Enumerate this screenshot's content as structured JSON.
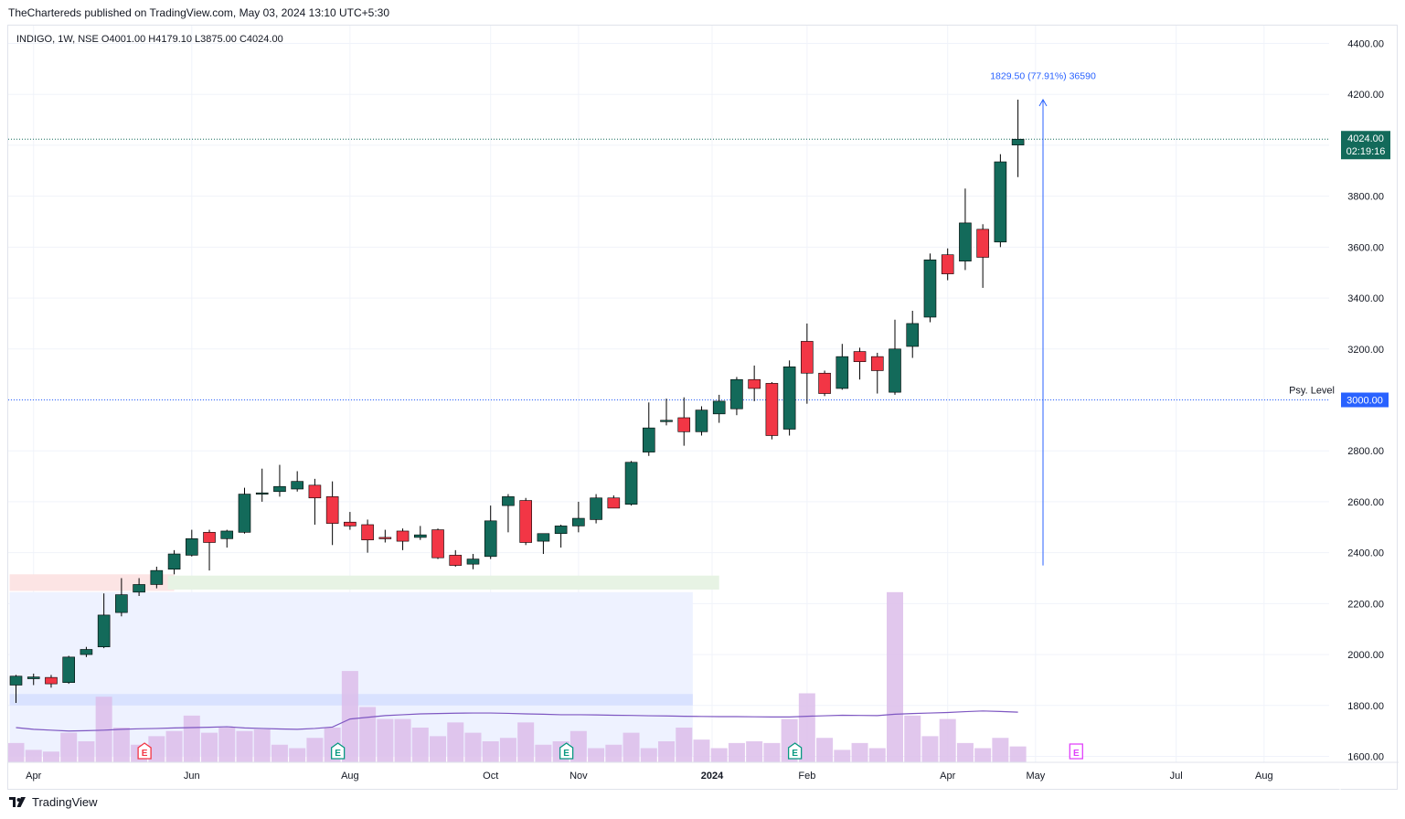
{
  "header": {
    "published_by": "TheChartereds published on TradingView.com, May 03, 2024 13:10 UTC+5:30"
  },
  "legend": {
    "symbol": "INDIGO, 1W, NSE",
    "open": "O4001.00",
    "high": "H4179.10",
    "low": "L3875.00",
    "close": "C4024.00"
  },
  "price_label": {
    "price": "4024.00",
    "countdown": "02:19:16",
    "color": "#136a5a"
  },
  "psy_level": {
    "label": "Psy. Level",
    "value_text": "3000.00",
    "value": 3000,
    "color": "#2962ff"
  },
  "measure": {
    "text": "1829.50 (77.91%) 36590",
    "from_price": 2350,
    "to_price": 4179.1,
    "color": "#2962ff"
  },
  "footer": {
    "brand": "TradingView"
  },
  "earnings_markers": [
    {
      "label": "E",
      "after_bar": 7,
      "style": "red"
    },
    {
      "label": "E",
      "after_bar": 18,
      "style": "green"
    },
    {
      "label": "E",
      "after_bar": 31,
      "style": "green"
    },
    {
      "label": "E",
      "after_bar": 44,
      "style": "green"
    },
    {
      "label": "E",
      "after_bar": 60,
      "style": "magenta"
    }
  ],
  "chart_data": {
    "type": "candlestick",
    "symbol": "INDIGO",
    "timeframe": "1W",
    "exchange": "NSE",
    "y_axis": {
      "ticks": [
        "4400.00",
        "4200.00",
        "4000.00",
        "3800.00",
        "3600.00",
        "3400.00",
        "3200.00",
        "3000.00",
        "2800.00",
        "2600.00",
        "2400.00",
        "2200.00",
        "2000.00",
        "1800.00",
        "1600.00"
      ],
      "range": [
        1600,
        4400
      ]
    },
    "x_axis": {
      "labels": [
        {
          "text": "Apr",
          "bar": 1
        },
        {
          "text": "Jun",
          "bar": 10
        },
        {
          "text": "Aug",
          "bar": 19
        },
        {
          "text": "Oct",
          "bar": 27
        },
        {
          "text": "Nov",
          "bar": 32
        },
        {
          "text": "2024",
          "bar": 39.6
        },
        {
          "text": "Feb",
          "bar": 45
        },
        {
          "text": "Apr",
          "bar": 53
        },
        {
          "text": "May",
          "bar": 58
        },
        {
          "text": "Jul",
          "bar": 66
        },
        {
          "text": "Aug",
          "bar": 71
        }
      ]
    },
    "up_color": "#136a5a",
    "down_color": "#f23645",
    "candles": [
      {
        "o": 1880,
        "h": 1920,
        "l": 1810,
        "c": 1915
      },
      {
        "o": 1905,
        "h": 1925,
        "l": 1880,
        "c": 1912
      },
      {
        "o": 1910,
        "h": 1920,
        "l": 1870,
        "c": 1885
      },
      {
        "o": 1890,
        "h": 1995,
        "l": 1885,
        "c": 1990
      },
      {
        "o": 2000,
        "h": 2030,
        "l": 1990,
        "c": 2020
      },
      {
        "o": 2030,
        "h": 2240,
        "l": 2025,
        "c": 2155
      },
      {
        "o": 2165,
        "h": 2300,
        "l": 2150,
        "c": 2235
      },
      {
        "o": 2245,
        "h": 2300,
        "l": 2230,
        "c": 2275
      },
      {
        "o": 2275,
        "h": 2345,
        "l": 2260,
        "c": 2330
      },
      {
        "o": 2335,
        "h": 2410,
        "l": 2315,
        "c": 2395
      },
      {
        "o": 2390,
        "h": 2490,
        "l": 2385,
        "c": 2455
      },
      {
        "o": 2480,
        "h": 2490,
        "l": 2330,
        "c": 2440
      },
      {
        "o": 2455,
        "h": 2490,
        "l": 2420,
        "c": 2485
      },
      {
        "o": 2480,
        "h": 2655,
        "l": 2475,
        "c": 2630
      },
      {
        "o": 2630,
        "h": 2730,
        "l": 2600,
        "c": 2635
      },
      {
        "o": 2640,
        "h": 2745,
        "l": 2620,
        "c": 2660
      },
      {
        "o": 2650,
        "h": 2720,
        "l": 2640,
        "c": 2680
      },
      {
        "o": 2665,
        "h": 2690,
        "l": 2510,
        "c": 2615
      },
      {
        "o": 2620,
        "h": 2680,
        "l": 2430,
        "c": 2515
      },
      {
        "o": 2520,
        "h": 2560,
        "l": 2490,
        "c": 2505
      },
      {
        "o": 2510,
        "h": 2530,
        "l": 2400,
        "c": 2450
      },
      {
        "o": 2460,
        "h": 2490,
        "l": 2440,
        "c": 2455
      },
      {
        "o": 2485,
        "h": 2495,
        "l": 2410,
        "c": 2445
      },
      {
        "o": 2460,
        "h": 2505,
        "l": 2450,
        "c": 2470
      },
      {
        "o": 2490,
        "h": 2495,
        "l": 2375,
        "c": 2380
      },
      {
        "o": 2390,
        "h": 2410,
        "l": 2345,
        "c": 2350
      },
      {
        "o": 2355,
        "h": 2395,
        "l": 2335,
        "c": 2375
      },
      {
        "o": 2385,
        "h": 2585,
        "l": 2375,
        "c": 2525
      },
      {
        "o": 2585,
        "h": 2630,
        "l": 2480,
        "c": 2620
      },
      {
        "o": 2605,
        "h": 2615,
        "l": 2430,
        "c": 2440
      },
      {
        "o": 2445,
        "h": 2470,
        "l": 2395,
        "c": 2475
      },
      {
        "o": 2475,
        "h": 2510,
        "l": 2420,
        "c": 2505
      },
      {
        "o": 2505,
        "h": 2600,
        "l": 2480,
        "c": 2535
      },
      {
        "o": 2530,
        "h": 2630,
        "l": 2515,
        "c": 2615
      },
      {
        "o": 2615,
        "h": 2625,
        "l": 2575,
        "c": 2575
      },
      {
        "o": 2590,
        "h": 2760,
        "l": 2585,
        "c": 2755
      },
      {
        "o": 2795,
        "h": 2990,
        "l": 2780,
        "c": 2890
      },
      {
        "o": 2920,
        "h": 3005,
        "l": 2900,
        "c": 2920
      },
      {
        "o": 2930,
        "h": 3010,
        "l": 2820,
        "c": 2875
      },
      {
        "o": 2875,
        "h": 2975,
        "l": 2860,
        "c": 2960
      },
      {
        "o": 2945,
        "h": 3020,
        "l": 2910,
        "c": 2995
      },
      {
        "o": 2965,
        "h": 3090,
        "l": 2940,
        "c": 3080
      },
      {
        "o": 3080,
        "h": 3135,
        "l": 2995,
        "c": 3045
      },
      {
        "o": 3065,
        "h": 3070,
        "l": 2845,
        "c": 2860
      },
      {
        "o": 2885,
        "h": 3155,
        "l": 2860,
        "c": 3130
      },
      {
        "o": 3230,
        "h": 3300,
        "l": 2985,
        "c": 3105
      },
      {
        "o": 3105,
        "h": 3115,
        "l": 3015,
        "c": 3025
      },
      {
        "o": 3045,
        "h": 3220,
        "l": 3040,
        "c": 3170
      },
      {
        "o": 3190,
        "h": 3205,
        "l": 3080,
        "c": 3150
      },
      {
        "o": 3170,
        "h": 3185,
        "l": 3025,
        "c": 3115
      },
      {
        "o": 3030,
        "h": 3315,
        "l": 3020,
        "c": 3200
      },
      {
        "o": 3210,
        "h": 3350,
        "l": 3165,
        "c": 3300
      },
      {
        "o": 3325,
        "h": 3575,
        "l": 3305,
        "c": 3550
      },
      {
        "o": 3570,
        "h": 3595,
        "l": 3470,
        "c": 3495
      },
      {
        "o": 3545,
        "h": 3830,
        "l": 3510,
        "c": 3695
      },
      {
        "o": 3670,
        "h": 3690,
        "l": 3440,
        "c": 3560
      },
      {
        "o": 3620,
        "h": 3965,
        "l": 3600,
        "c": 3935
      },
      {
        "o": 4001,
        "h": 4179.1,
        "l": 3875,
        "c": 4024
      }
    ],
    "volume": {
      "colors": {
        "bar": "#dcbdea",
        "ma": "#7e57c2"
      },
      "values": [
        11,
        7,
        6,
        17,
        12,
        38,
        20,
        10,
        15,
        18,
        27,
        17,
        20,
        18,
        19,
        10,
        8,
        14,
        20,
        53,
        32,
        25,
        25,
        20,
        15,
        23,
        17,
        12,
        14,
        23,
        10,
        12,
        18,
        8,
        10,
        17,
        8,
        12,
        20,
        13,
        8,
        11,
        12,
        11,
        25,
        40,
        14,
        7,
        11,
        8,
        99,
        27,
        15,
        25,
        11,
        8,
        14,
        9
      ],
      "ma": [
        20,
        19,
        18.5,
        18,
        18.2,
        18.5,
        19,
        19.3,
        19.5,
        19.8,
        20,
        20.2,
        20.5,
        19.8,
        19.5,
        19.2,
        19,
        19.5,
        20.3,
        25,
        26,
        27,
        27.5,
        28,
        28.2,
        28.4,
        28.5,
        28.5,
        28.3,
        28,
        27.8,
        27.5,
        27.5,
        27.4,
        27.2,
        27.1,
        26.9,
        26.8,
        26.6,
        26.5,
        26.4,
        26.4,
        26.3,
        26.2,
        26.2,
        26.6,
        26.9,
        27.2,
        27.1,
        27.0,
        27.8,
        28.2,
        28.5,
        28.8,
        29.3,
        29.7,
        29.4,
        29.0
      ]
    },
    "zones": [
      {
        "name": "red-demand-zone",
        "from_bar": 0,
        "to_bar": 9,
        "top": 2315,
        "bottom": 2250,
        "color": "#fce4e4"
      },
      {
        "name": "green-demand-zone",
        "from_bar": 9,
        "to_bar": 40,
        "top": 2310,
        "bottom": 2255,
        "color": "#e7f3e4"
      },
      {
        "name": "volume-profile-zone",
        "from_bar": 0,
        "to_bar": 38.5,
        "top": 2245,
        "bottom": 1600,
        "color": "#eef2ff"
      },
      {
        "name": "volume-profile-band",
        "from_bar": 0,
        "to_bar": 38.5,
        "top": 1845,
        "bottom": 1800,
        "color": "#d9e2ff"
      }
    ]
  }
}
